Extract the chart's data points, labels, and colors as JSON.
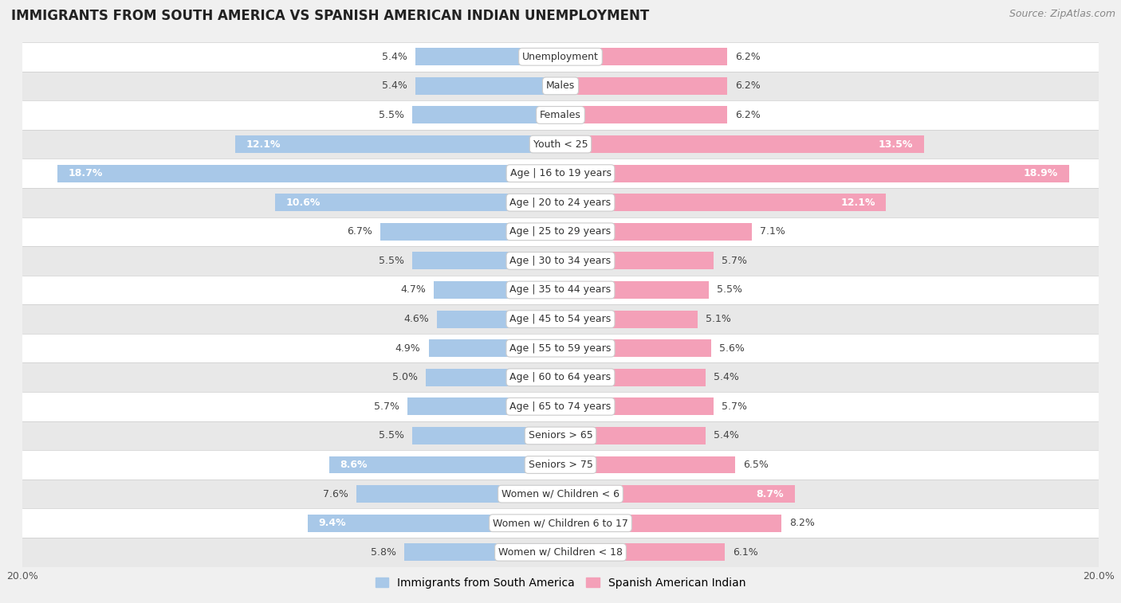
{
  "title": "IMMIGRANTS FROM SOUTH AMERICA VS SPANISH AMERICAN INDIAN UNEMPLOYMENT",
  "source": "Source: ZipAtlas.com",
  "categories": [
    "Unemployment",
    "Males",
    "Females",
    "Youth < 25",
    "Age | 16 to 19 years",
    "Age | 20 to 24 years",
    "Age | 25 to 29 years",
    "Age | 30 to 34 years",
    "Age | 35 to 44 years",
    "Age | 45 to 54 years",
    "Age | 55 to 59 years",
    "Age | 60 to 64 years",
    "Age | 65 to 74 years",
    "Seniors > 65",
    "Seniors > 75",
    "Women w/ Children < 6",
    "Women w/ Children 6 to 17",
    "Women w/ Children < 18"
  ],
  "left_values": [
    5.4,
    5.4,
    5.5,
    12.1,
    18.7,
    10.6,
    6.7,
    5.5,
    4.7,
    4.6,
    4.9,
    5.0,
    5.7,
    5.5,
    8.6,
    7.6,
    9.4,
    5.8
  ],
  "right_values": [
    6.2,
    6.2,
    6.2,
    13.5,
    18.9,
    12.1,
    7.1,
    5.7,
    5.5,
    5.1,
    5.6,
    5.4,
    5.7,
    5.4,
    6.5,
    8.7,
    8.2,
    6.1
  ],
  "left_color": "#a8c8e8",
  "right_color": "#f4a0b8",
  "left_label": "Immigrants from South America",
  "right_label": "Spanish American Indian",
  "xlim": 20.0,
  "bg_color": "#f0f0f0",
  "row_colors": [
    "#ffffff",
    "#e8e8e8"
  ],
  "title_fontsize": 12,
  "source_fontsize": 9,
  "cat_fontsize": 9,
  "val_fontsize": 9,
  "bar_height": 0.6,
  "inside_threshold": 8.5,
  "val_text_color_outside": "#444444",
  "val_text_color_inside": "#ffffff"
}
